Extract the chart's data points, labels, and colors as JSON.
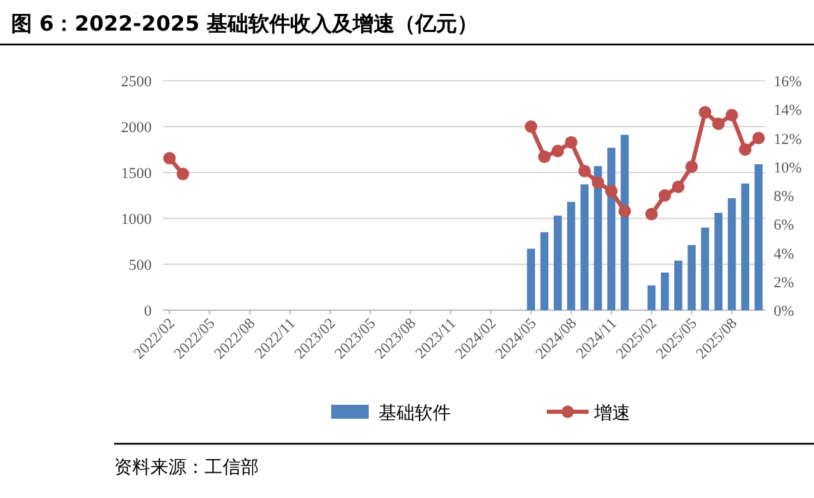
{
  "chart_data": {
    "type": "bar",
    "title": "图 6：2022-2025 基础软件收入及增速（亿元）",
    "annotations": [
      "资料来源：工信部"
    ],
    "categories": [
      "2022/02",
      null,
      null,
      "2022/05",
      null,
      null,
      "2022/08",
      null,
      null,
      "2022/11",
      null,
      null,
      "2023/02",
      null,
      null,
      "2023/05",
      null,
      null,
      "2023/08",
      null,
      null,
      "2023/11",
      null,
      null,
      "2024/02",
      null,
      null,
      "2024/05",
      null,
      null,
      "2024/08",
      null,
      null,
      "2024/11",
      null,
      null,
      "2025/02",
      null,
      null,
      "2025/05",
      null,
      null,
      "2025/08",
      null,
      null
    ],
    "series": [
      {
        "name": "基础软件",
        "color": "#4f81bd",
        "values": [
          null,
          null,
          null,
          null,
          null,
          null,
          null,
          null,
          null,
          null,
          null,
          null,
          null,
          null,
          null,
          null,
          null,
          null,
          null,
          null,
          null,
          null,
          null,
          null,
          null,
          null,
          null,
          670,
          850,
          1030,
          1180,
          1370,
          1570,
          1770,
          1910,
          null,
          270,
          410,
          540,
          710,
          900,
          1060,
          1220,
          1380,
          1590
        ]
      },
      {
        "name": "增速",
        "type": "line",
        "axis": "y2",
        "color": "#c0504d",
        "values": [
          10.6,
          9.5,
          null,
          null,
          null,
          null,
          null,
          null,
          null,
          null,
          null,
          null,
          null,
          null,
          null,
          null,
          null,
          null,
          null,
          null,
          null,
          null,
          null,
          null,
          null,
          null,
          null,
          12.8,
          10.7,
          11.1,
          11.7,
          9.7,
          8.9,
          8.3,
          6.9,
          null,
          6.7,
          8.0,
          8.6,
          10.0,
          13.8,
          13.0,
          13.6,
          11.2,
          12.0
        ]
      }
    ],
    "ylim": [
      0,
      2500
    ],
    "yticks": [
      0,
      500,
      1000,
      1500,
      2000,
      2500
    ],
    "y2lim": [
      0,
      16
    ],
    "y2ticks": [
      {
        "value": 0,
        "label": "0%"
      },
      {
        "value": 2,
        "label": "2%"
      },
      {
        "value": 4,
        "label": "4%"
      },
      {
        "value": 6,
        "label": "6%"
      },
      {
        "value": 8,
        "label": "8%"
      },
      {
        "value": 10,
        "label": "10%"
      },
      {
        "value": 12,
        "label": "12%"
      },
      {
        "value": 14,
        "label": "14%"
      },
      {
        "value": 16,
        "label": "16%"
      }
    ],
    "grid": "y",
    "legend": "bottom",
    "marker": "circle"
  }
}
